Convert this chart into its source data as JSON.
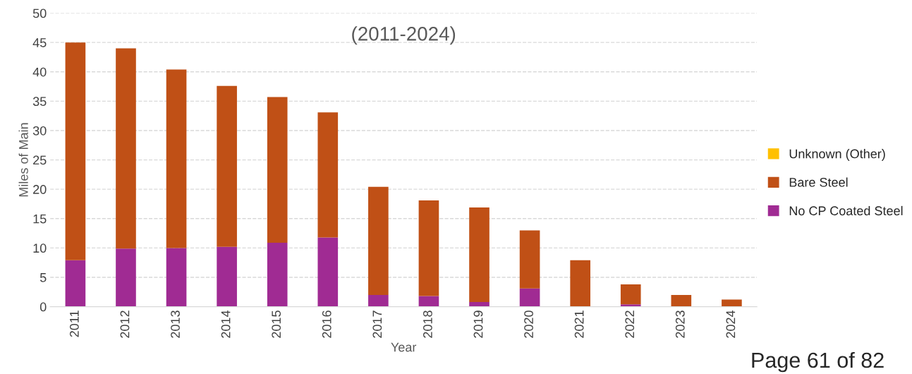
{
  "chart_data": {
    "type": "bar",
    "title": "(2011-2024)",
    "xlabel": "Year",
    "ylabel": "Miles of Main",
    "categories": [
      "2011",
      "2012",
      "2013",
      "2014",
      "2015",
      "2016",
      "2017",
      "2018",
      "2019",
      "2020",
      "2021",
      "2022",
      "2023",
      "2024"
    ],
    "stacked": true,
    "series": [
      {
        "name": "No CP Coated Steel",
        "color": "#a02b93",
        "values": [
          7.9,
          9.9,
          10.0,
          10.2,
          10.9,
          11.8,
          2.0,
          1.8,
          0.8,
          3.1,
          0,
          0.4,
          null,
          0
        ]
      },
      {
        "name": "Bare Steel",
        "color": "#c05016",
        "values": [
          37.1,
          34.1,
          30.4,
          27.4,
          24.8,
          21.3,
          18.4,
          16.3,
          16.1,
          9.9,
          7.9,
          3.4,
          2.0,
          1.2
        ]
      },
      {
        "name": "Unknown (Other)",
        "color": "#ffc000",
        "values": [
          0,
          0,
          0,
          0,
          0,
          0,
          0,
          0,
          0,
          0,
          0,
          0,
          0,
          0
        ]
      }
    ],
    "ylim": [
      0,
      50
    ],
    "yticks": [
      0,
      5,
      10,
      15,
      20,
      25,
      30,
      35,
      40,
      45,
      50
    ],
    "grid": "y",
    "legend": "right",
    "annotations": [
      "Page 61 of 82"
    ]
  }
}
